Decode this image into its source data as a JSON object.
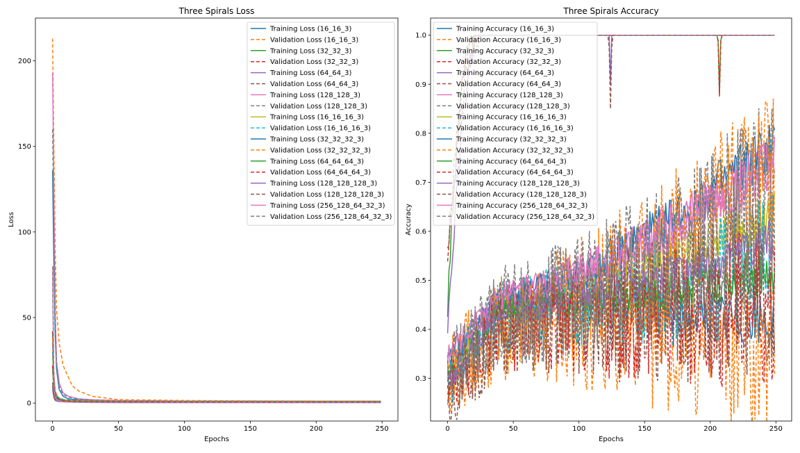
{
  "chart_data": [
    {
      "type": "line",
      "title": "Three Spirals Loss",
      "xlabel": "Epochs",
      "ylabel": "Loss",
      "xlim": [
        -13,
        262
      ],
      "ylim": [
        -10.5,
        225
      ],
      "xticks": [
        0,
        50,
        100,
        150,
        200,
        250
      ],
      "yticks": [
        0,
        50,
        100,
        150,
        200
      ],
      "legend_position": "top-right",
      "grid": false,
      "series": [
        {
          "name": "Training Loss (16_16_3)",
          "color": "#1f77b4",
          "dashed": false,
          "x": [
            0,
            1,
            2,
            3,
            5,
            8,
            12,
            20,
            30,
            50,
            100,
            150,
            200,
            249
          ],
          "y": [
            136,
            80,
            40,
            20,
            8,
            4,
            2.5,
            1.8,
            1.5,
            1.3,
            1.1,
            1.0,
            1.0,
            1.0
          ]
        },
        {
          "name": "Validation Loss (16_16_3)",
          "color": "#ff7f0e",
          "dashed": true,
          "x": [
            0,
            1,
            2,
            3,
            5,
            8,
            12,
            15,
            20,
            30,
            50,
            100,
            150,
            200,
            249
          ],
          "y": [
            213,
            150,
            90,
            55,
            35,
            22,
            15,
            10,
            7,
            4,
            2,
            1.5,
            1.3,
            1.2,
            1.2
          ]
        },
        {
          "name": "Training Loss (32_32_3)",
          "color": "#2ca02c",
          "dashed": false,
          "x": [
            0,
            1,
            2,
            4,
            8,
            15,
            30,
            60,
            120,
            249
          ],
          "y": [
            40,
            15,
            6,
            3,
            1.5,
            1,
            0.8,
            0.7,
            0.6,
            0.6
          ]
        },
        {
          "name": "Validation Loss (32_32_3)",
          "color": "#d62728",
          "dashed": true,
          "x": [
            0,
            1,
            2,
            4,
            8,
            15,
            30,
            60,
            120,
            249
          ],
          "y": [
            42,
            16,
            7,
            3,
            2,
            1.2,
            1,
            0.9,
            0.8,
            0.8
          ]
        },
        {
          "name": "Training Loss (64_64_3)",
          "color": "#9467bd",
          "dashed": false,
          "x": [
            0,
            1,
            2,
            4,
            8,
            15,
            30,
            60,
            120,
            249
          ],
          "y": [
            10,
            4,
            2,
            1.5,
            1,
            0.8,
            0.6,
            0.5,
            0.4,
            0.4
          ]
        },
        {
          "name": "Validation Loss (64_64_3)",
          "color": "#8c564b",
          "dashed": true,
          "x": [
            0,
            1,
            2,
            4,
            8,
            15,
            30,
            60,
            120,
            249
          ],
          "y": [
            12,
            5,
            2.5,
            1.8,
            1.2,
            1,
            0.8,
            0.7,
            0.6,
            0.6
          ]
        },
        {
          "name": "Training Loss (128_128_3)",
          "color": "#e377c2",
          "dashed": false,
          "x": [
            0,
            1,
            2,
            3,
            5,
            8,
            12,
            20,
            30,
            50,
            100,
            150,
            200,
            249
          ],
          "y": [
            193,
            120,
            55,
            25,
            12,
            6,
            4,
            2.5,
            2,
            1.5,
            1.2,
            1.1,
            1.0,
            1.0
          ]
        },
        {
          "name": "Validation Loss (128_128_3)",
          "color": "#7f7f7f",
          "dashed": true,
          "x": [
            0,
            1,
            2,
            3,
            5,
            8,
            12,
            20,
            30,
            50,
            100,
            150,
            200,
            249
          ],
          "y": [
            160,
            100,
            50,
            22,
            10,
            5,
            3.5,
            2.2,
            1.8,
            1.4,
            1.1,
            1.0,
            1.0,
            1.0
          ]
        },
        {
          "name": "Training Loss (16_16_16_3)",
          "color": "#bcbd22",
          "dashed": false,
          "x": [
            0,
            1,
            2,
            4,
            8,
            15,
            30,
            60,
            120,
            249
          ],
          "y": [
            28,
            10,
            5,
            3,
            2,
            1.5,
            1.2,
            1,
            1,
            1
          ]
        },
        {
          "name": "Validation Loss (16_16_16_3)",
          "color": "#17becf",
          "dashed": true,
          "x": [
            0,
            1,
            2,
            4,
            8,
            15,
            30,
            60,
            120,
            249
          ],
          "y": [
            30,
            12,
            6,
            3.5,
            2.2,
            1.6,
            1.3,
            1.1,
            1.1,
            1.1
          ]
        },
        {
          "name": "Training Loss (32_32_32_3)",
          "color": "#1f77b4",
          "dashed": false,
          "x": [
            0,
            1,
            2,
            4,
            8,
            15,
            30,
            60,
            120,
            249
          ],
          "y": [
            35,
            14,
            6,
            3,
            1.6,
            1.1,
            0.9,
            0.8,
            0.7,
            0.7
          ]
        },
        {
          "name": "Validation Loss (32_32_32_3)",
          "color": "#ff7f0e",
          "dashed": true,
          "x": [
            0,
            1,
            2,
            4,
            8,
            15,
            30,
            60,
            120,
            249
          ],
          "y": [
            38,
            15,
            7,
            3.5,
            1.8,
            1.3,
            1.1,
            1.0,
            0.9,
            0.9
          ]
        },
        {
          "name": "Training Loss (64_64_64_3)",
          "color": "#2ca02c",
          "dashed": false,
          "x": [
            0,
            1,
            2,
            4,
            8,
            15,
            30,
            60,
            120,
            249
          ],
          "y": [
            20,
            8,
            4,
            2,
            1.2,
            0.9,
            0.7,
            0.6,
            0.5,
            0.5
          ]
        },
        {
          "name": "Validation Loss (64_64_64_3)",
          "color": "#d62728",
          "dashed": true,
          "x": [
            0,
            1,
            2,
            4,
            8,
            15,
            30,
            60,
            120,
            249
          ],
          "y": [
            22,
            9,
            4.5,
            2.3,
            1.4,
            1.1,
            0.9,
            0.8,
            0.7,
            0.7
          ]
        },
        {
          "name": "Training Loss (128_128_128_3)",
          "color": "#9467bd",
          "dashed": false,
          "x": [
            0,
            1,
            2,
            4,
            8,
            15,
            30,
            60,
            120,
            249
          ],
          "y": [
            8,
            3,
            1.5,
            1,
            0.7,
            0.5,
            0.4,
            0.3,
            0.3,
            0.3
          ]
        },
        {
          "name": "Validation Loss (128_128_128_3)",
          "color": "#8c564b",
          "dashed": true,
          "x": [
            0,
            1,
            2,
            4,
            8,
            15,
            30,
            60,
            120,
            249
          ],
          "y": [
            10,
            4,
            2,
            1.3,
            0.9,
            0.7,
            0.6,
            0.5,
            0.5,
            0.5
          ]
        },
        {
          "name": "Training Loss (256_128_64_32_3)",
          "color": "#e377c2",
          "dashed": false,
          "x": [
            0,
            1,
            2,
            4,
            8,
            15,
            30,
            60,
            120,
            249
          ],
          "y": [
            78,
            10,
            3,
            1.5,
            0.8,
            0.5,
            0.3,
            0.2,
            0.2,
            0.2
          ]
        },
        {
          "name": "Validation Loss (256_128_64_32_3)",
          "color": "#7f7f7f",
          "dashed": true,
          "x": [
            0,
            1,
            2,
            4,
            8,
            15,
            30,
            60,
            120,
            249
          ],
          "y": [
            80,
            12,
            4,
            2,
            1,
            0.7,
            0.5,
            0.4,
            0.4,
            0.4
          ]
        }
      ]
    },
    {
      "type": "line",
      "title": "Three Spirals Accuracy",
      "xlabel": "Epochs",
      "ylabel": "Accuracy",
      "xlim": [
        -13,
        262
      ],
      "ylim": [
        0.213,
        1.035
      ],
      "xticks": [
        0,
        50,
        100,
        150,
        200,
        250
      ],
      "yticks": [
        0.3,
        0.4,
        0.5,
        0.6,
        0.7,
        0.8,
        0.9,
        1.0
      ],
      "legend_position": "top-left",
      "grid": false,
      "series": [
        {
          "name": "Training Accuracy (16_16_3)",
          "color": "#1f77b4",
          "dashed": false,
          "start": 0.26,
          "mid": 0.45,
          "end": 0.41,
          "noise": 0.012
        },
        {
          "name": "Validation Accuracy (16_16_3)",
          "color": "#ff7f0e",
          "dashed": true,
          "start": 0.29,
          "mid": 0.38,
          "end": 0.35,
          "noise": 0.035
        },
        {
          "name": "Training Accuracy (32_32_3)",
          "color": "#2ca02c",
          "dashed": false,
          "start": 0.45,
          "plateau": 1.0,
          "rise_end": 20,
          "dips": [
            [
              207,
              0.88
            ]
          ]
        },
        {
          "name": "Validation Accuracy (32_32_3)",
          "color": "#d62728",
          "dashed": true,
          "start": 0.55,
          "plateau": 1.0,
          "rise_end": 22,
          "dips": [
            [
              207,
              0.875
            ]
          ]
        },
        {
          "name": "Training Accuracy (64_64_3)",
          "color": "#9467bd",
          "dashed": false,
          "start": 0.39,
          "plateau": 1.0,
          "rise_end": 25,
          "dips": [
            [
              124,
              0.9
            ]
          ]
        },
        {
          "name": "Validation Accuracy (64_64_3)",
          "color": "#8c564b",
          "dashed": true,
          "start": 0.55,
          "plateau": 1.0,
          "rise_end": 25,
          "dips": [
            [
              124,
              0.85
            ]
          ]
        },
        {
          "name": "Training Accuracy (128_128_3)",
          "color": "#e377c2",
          "dashed": false,
          "start": 0.33,
          "mid": 0.47,
          "end": 0.75,
          "noise": 0.012
        },
        {
          "name": "Validation Accuracy (128_128_3)",
          "color": "#7f7f7f",
          "dashed": true,
          "start": 0.3,
          "mid": 0.42,
          "end": 0.68,
          "noise": 0.04
        },
        {
          "name": "Training Accuracy (16_16_16_3)",
          "color": "#bcbd22",
          "dashed": false,
          "start": 0.31,
          "mid": 0.45,
          "end": 0.63,
          "noise": 0.01
        },
        {
          "name": "Validation Accuracy (16_16_16_3)",
          "color": "#17becf",
          "dashed": true,
          "start": 0.3,
          "mid": 0.43,
          "end": 0.54,
          "noise": 0.03
        },
        {
          "name": "Training Accuracy (32_32_32_3)",
          "color": "#1f77b4",
          "dashed": false,
          "start": 0.33,
          "mid": 0.46,
          "end": 0.78,
          "noise": 0.012
        },
        {
          "name": "Validation Accuracy (32_32_32_3)",
          "color": "#ff7f0e",
          "dashed": true,
          "start": 0.31,
          "mid": 0.42,
          "end": 0.7,
          "noise": 0.04
        },
        {
          "name": "Training Accuracy (64_64_64_3)",
          "color": "#2ca02c",
          "dashed": false,
          "start": 0.3,
          "mid": 0.44,
          "end": 0.52,
          "noise": 0.01
        },
        {
          "name": "Validation Accuracy (64_64_64_3)",
          "color": "#d62728",
          "dashed": true,
          "start": 0.28,
          "mid": 0.4,
          "end": 0.45,
          "noise": 0.035
        },
        {
          "name": "Training Accuracy (128_128_128_3)",
          "color": "#9467bd",
          "dashed": false,
          "start": 0.29,
          "mid": 0.44,
          "end": 0.58,
          "noise": 0.01
        },
        {
          "name": "Validation Accuracy (128_128_128_3)",
          "color": "#8c564b",
          "dashed": true,
          "start": 0.27,
          "mid": 0.4,
          "end": 0.5,
          "noise": 0.04
        },
        {
          "name": "Training Accuracy (256_128_64_32_3)",
          "color": "#e377c2",
          "dashed": false,
          "start": 0.35,
          "mid": 0.47,
          "end": 0.74,
          "noise": 0.012
        },
        {
          "name": "Validation Accuracy (256_128_64_32_3)",
          "color": "#7f7f7f",
          "dashed": true,
          "start": 0.32,
          "mid": 0.43,
          "end": 0.66,
          "noise": 0.04
        }
      ]
    }
  ]
}
